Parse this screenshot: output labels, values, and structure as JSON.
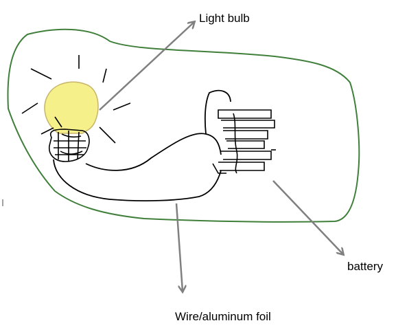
{
  "labels": {
    "light_bulb": "Light bulb",
    "battery": "battery",
    "wire": "Wire/aluminum foil"
  },
  "colors": {
    "outline": "#3f7f3a",
    "arrow": "#808080",
    "ink": "#000000",
    "bulb_glow": "#f5f08a",
    "background": "#ffffff"
  }
}
